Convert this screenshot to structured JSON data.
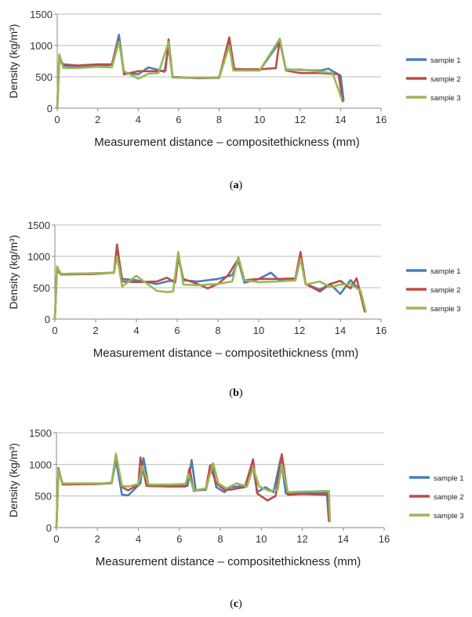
{
  "colors": {
    "sample 1": "#4a7ebb",
    "sample 2": "#be4b48",
    "sample 3": "#98b954",
    "grid": "#bdbdbd",
    "axis": "#898989"
  },
  "chart_data": [
    {
      "panel": "a",
      "type": "line",
      "ylabel": "Density (kg/m³)",
      "xlabel": "Measurement distance – compositethickness (mm)",
      "xlim": [
        0,
        16
      ],
      "ylim": [
        0,
        1500
      ],
      "xticks": [
        "0",
        "2",
        "4",
        "6",
        "8",
        "10",
        "12",
        "14",
        "16"
      ],
      "yticks": [
        "0",
        "500",
        "1000",
        "1500"
      ],
      "legend": [
        "sample 1",
        "sample 2",
        "sample 3"
      ],
      "series": [
        {
          "name": "sample 1",
          "points": [
            [
              0,
              0
            ],
            [
              0.1,
              840
            ],
            [
              0.3,
              680
            ],
            [
              1,
              650
            ],
            [
              2,
              680
            ],
            [
              2.7,
              690
            ],
            [
              3.05,
              1170
            ],
            [
              3.3,
              560
            ],
            [
              4,
              540
            ],
            [
              4.5,
              650
            ],
            [
              5,
              610
            ],
            [
              5.3,
              580
            ],
            [
              5.5,
              980
            ],
            [
              5.7,
              490
            ],
            [
              7,
              480
            ],
            [
              8,
              490
            ],
            [
              8.5,
              1080
            ],
            [
              8.7,
              630
            ],
            [
              10,
              600
            ],
            [
              11,
              1060
            ],
            [
              11.3,
              620
            ],
            [
              12,
              610
            ],
            [
              13,
              600
            ],
            [
              13.4,
              630
            ],
            [
              14,
              520
            ],
            [
              14.15,
              130
            ]
          ]
        },
        {
          "name": "sample 2",
          "points": [
            [
              0,
              0
            ],
            [
              0.1,
              760
            ],
            [
              0.3,
              700
            ],
            [
              1,
              680
            ],
            [
              2,
              700
            ],
            [
              2.7,
              700
            ],
            [
              3.05,
              1090
            ],
            [
              3.3,
              540
            ],
            [
              4,
              590
            ],
            [
              5,
              590
            ],
            [
              5.35,
              600
            ],
            [
              5.5,
              1100
            ],
            [
              5.7,
              500
            ],
            [
              7,
              480
            ],
            [
              8,
              480
            ],
            [
              8.5,
              1130
            ],
            [
              8.75,
              620
            ],
            [
              10,
              620
            ],
            [
              10.8,
              640
            ],
            [
              11,
              1100
            ],
            [
              11.3,
              600
            ],
            [
              12,
              560
            ],
            [
              13,
              560
            ],
            [
              13.9,
              540
            ],
            [
              14.1,
              110
            ]
          ]
        },
        {
          "name": "sample 3",
          "points": [
            [
              0,
              0
            ],
            [
              0.1,
              860
            ],
            [
              0.3,
              640
            ],
            [
              1,
              640
            ],
            [
              2,
              660
            ],
            [
              2.7,
              650
            ],
            [
              3.05,
              1060
            ],
            [
              3.3,
              590
            ],
            [
              4,
              470
            ],
            [
              4.5,
              550
            ],
            [
              5,
              560
            ],
            [
              5.5,
              1050
            ],
            [
              5.7,
              490
            ],
            [
              7,
              490
            ],
            [
              8,
              480
            ],
            [
              8.5,
              1000
            ],
            [
              8.7,
              600
            ],
            [
              10,
              600
            ],
            [
              11,
              1110
            ],
            [
              11.3,
              610
            ],
            [
              12,
              620
            ],
            [
              13,
              580
            ],
            [
              13.6,
              560
            ],
            [
              14.05,
              150
            ]
          ]
        }
      ]
    },
    {
      "panel": "b",
      "type": "line",
      "ylabel": "Density (kg/m³)",
      "xlabel": "Measurement distance – compositethickness (mm)",
      "xlim": [
        0,
        16
      ],
      "ylim": [
        0,
        1500
      ],
      "xticks": [
        "0",
        "2",
        "4",
        "6",
        "8",
        "10",
        "12",
        "14",
        "16"
      ],
      "yticks": [
        "0",
        "500",
        "1000",
        "1500"
      ],
      "legend": [
        "sample 1",
        "sample 2",
        "sample 3"
      ],
      "series": [
        {
          "name": "sample 1",
          "points": [
            [
              0,
              0
            ],
            [
              0.1,
              800
            ],
            [
              0.3,
              720
            ],
            [
              2,
              730
            ],
            [
              2.9,
              740
            ],
            [
              3.05,
              1060
            ],
            [
              3.3,
              640
            ],
            [
              4,
              620
            ],
            [
              5,
              560
            ],
            [
              5.5,
              600
            ],
            [
              5.9,
              620
            ],
            [
              6.05,
              1040
            ],
            [
              6.3,
              620
            ],
            [
              7,
              600
            ],
            [
              8,
              640
            ],
            [
              8.7,
              700
            ],
            [
              9,
              930
            ],
            [
              9.3,
              580
            ],
            [
              10,
              640
            ],
            [
              10.6,
              740
            ],
            [
              11,
              620
            ],
            [
              11.8,
              620
            ],
            [
              12.05,
              1040
            ],
            [
              12.3,
              560
            ],
            [
              13,
              470
            ],
            [
              13.5,
              560
            ],
            [
              14,
              400
            ],
            [
              14.5,
              620
            ],
            [
              15,
              450
            ],
            [
              15.2,
              120
            ]
          ]
        },
        {
          "name": "sample 2",
          "points": [
            [
              0,
              0
            ],
            [
              0.1,
              790
            ],
            [
              0.3,
              710
            ],
            [
              2,
              720
            ],
            [
              2.9,
              740
            ],
            [
              3.05,
              1190
            ],
            [
              3.3,
              600
            ],
            [
              4,
              590
            ],
            [
              5,
              600
            ],
            [
              5.5,
              660
            ],
            [
              5.9,
              580
            ],
            [
              6.05,
              980
            ],
            [
              6.3,
              640
            ],
            [
              7,
              560
            ],
            [
              7.5,
              490
            ],
            [
              8,
              560
            ],
            [
              8.5,
              700
            ],
            [
              9,
              960
            ],
            [
              9.3,
              620
            ],
            [
              10,
              640
            ],
            [
              11,
              640
            ],
            [
              11.8,
              650
            ],
            [
              12.05,
              1070
            ],
            [
              12.3,
              560
            ],
            [
              13,
              440
            ],
            [
              13.5,
              560
            ],
            [
              14,
              610
            ],
            [
              14.5,
              490
            ],
            [
              14.8,
              650
            ],
            [
              15.2,
              120
            ]
          ]
        },
        {
          "name": "sample 3",
          "points": [
            [
              0,
              0
            ],
            [
              0.1,
              840
            ],
            [
              0.3,
              720
            ],
            [
              2,
              730
            ],
            [
              2.9,
              740
            ],
            [
              3.05,
              1000
            ],
            [
              3.3,
              520
            ],
            [
              4,
              690
            ],
            [
              5,
              450
            ],
            [
              5.5,
              430
            ],
            [
              5.8,
              440
            ],
            [
              6.05,
              1070
            ],
            [
              6.3,
              550
            ],
            [
              7,
              540
            ],
            [
              8,
              560
            ],
            [
              8.7,
              600
            ],
            [
              9,
              990
            ],
            [
              9.3,
              620
            ],
            [
              10,
              590
            ],
            [
              11,
              600
            ],
            [
              11.8,
              620
            ],
            [
              12.05,
              960
            ],
            [
              12.3,
              550
            ],
            [
              13,
              600
            ],
            [
              13.5,
              510
            ],
            [
              14,
              550
            ],
            [
              14.5,
              560
            ],
            [
              15,
              450
            ],
            [
              15.25,
              120
            ]
          ]
        }
      ]
    },
    {
      "panel": "c",
      "type": "line",
      "ylabel": "Density (kg/m³)",
      "xlabel": "Measurement distance – compositethickness (mm)",
      "xlim": [
        0,
        16
      ],
      "ylim": [
        0,
        1500
      ],
      "xticks": [
        "0",
        "2",
        "4",
        "6",
        "8",
        "10",
        "12",
        "14",
        "16"
      ],
      "yticks": [
        "0",
        "500",
        "1000",
        "1500"
      ],
      "legend": [
        "sample 1",
        "sample 2",
        "sample 3"
      ],
      "series": [
        {
          "name": "sample 1",
          "points": [
            [
              0,
              0
            ],
            [
              0.1,
              900
            ],
            [
              0.3,
              690
            ],
            [
              2,
              690
            ],
            [
              2.7,
              700
            ],
            [
              2.9,
              1070
            ],
            [
              3.2,
              520
            ],
            [
              3.5,
              510
            ],
            [
              4.1,
              700
            ],
            [
              4.25,
              1100
            ],
            [
              4.5,
              660
            ],
            [
              5.5,
              660
            ],
            [
              6.4,
              660
            ],
            [
              6.6,
              1070
            ],
            [
              6.8,
              590
            ],
            [
              7.3,
              600
            ],
            [
              7.6,
              1000
            ],
            [
              7.8,
              640
            ],
            [
              8.2,
              560
            ],
            [
              8.5,
              640
            ],
            [
              9.2,
              660
            ],
            [
              9.6,
              960
            ],
            [
              9.8,
              560
            ],
            [
              10.2,
              640
            ],
            [
              10.6,
              560
            ],
            [
              10.95,
              1100
            ],
            [
              11.2,
              540
            ],
            [
              12,
              540
            ],
            [
              13.2,
              550
            ],
            [
              13.3,
              100
            ]
          ]
        },
        {
          "name": "sample 2",
          "points": [
            [
              0,
              0
            ],
            [
              0.1,
              940
            ],
            [
              0.3,
              680
            ],
            [
              2,
              690
            ],
            [
              2.7,
              710
            ],
            [
              2.9,
              1150
            ],
            [
              3.2,
              640
            ],
            [
              3.5,
              590
            ],
            [
              4,
              680
            ],
            [
              4.1,
              1110
            ],
            [
              4.4,
              660
            ],
            [
              5.5,
              650
            ],
            [
              6.3,
              650
            ],
            [
              6.5,
              940
            ],
            [
              6.7,
              580
            ],
            [
              7.3,
              620
            ],
            [
              7.5,
              980
            ],
            [
              7.8,
              700
            ],
            [
              8.2,
              600
            ],
            [
              8.5,
              600
            ],
            [
              9.2,
              640
            ],
            [
              9.6,
              1080
            ],
            [
              9.8,
              540
            ],
            [
              10.3,
              430
            ],
            [
              10.7,
              500
            ],
            [
              11,
              1160
            ],
            [
              11.3,
              520
            ],
            [
              12,
              530
            ],
            [
              13.25,
              520
            ],
            [
              13.3,
              110
            ]
          ]
        },
        {
          "name": "sample 3",
          "points": [
            [
              0,
              0
            ],
            [
              0.1,
              920
            ],
            [
              0.3,
              700
            ],
            [
              2,
              700
            ],
            [
              2.7,
              700
            ],
            [
              2.9,
              1170
            ],
            [
              3.2,
              660
            ],
            [
              3.5,
              650
            ],
            [
              4,
              690
            ],
            [
              4.2,
              970
            ],
            [
              4.5,
              680
            ],
            [
              5.5,
              680
            ],
            [
              6.3,
              690
            ],
            [
              6.45,
              850
            ],
            [
              6.7,
              590
            ],
            [
              7.3,
              620
            ],
            [
              7.65,
              1020
            ],
            [
              7.9,
              700
            ],
            [
              8.3,
              620
            ],
            [
              8.8,
              700
            ],
            [
              9.3,
              650
            ],
            [
              9.6,
              950
            ],
            [
              9.9,
              650
            ],
            [
              10.4,
              580
            ],
            [
              10.8,
              600
            ],
            [
              11,
              1000
            ],
            [
              11.3,
              560
            ],
            [
              12,
              570
            ],
            [
              13.3,
              580
            ],
            [
              13.35,
              100
            ]
          ]
        }
      ]
    }
  ],
  "captions": {
    "a": "a",
    "b": "b",
    "c": "c"
  }
}
